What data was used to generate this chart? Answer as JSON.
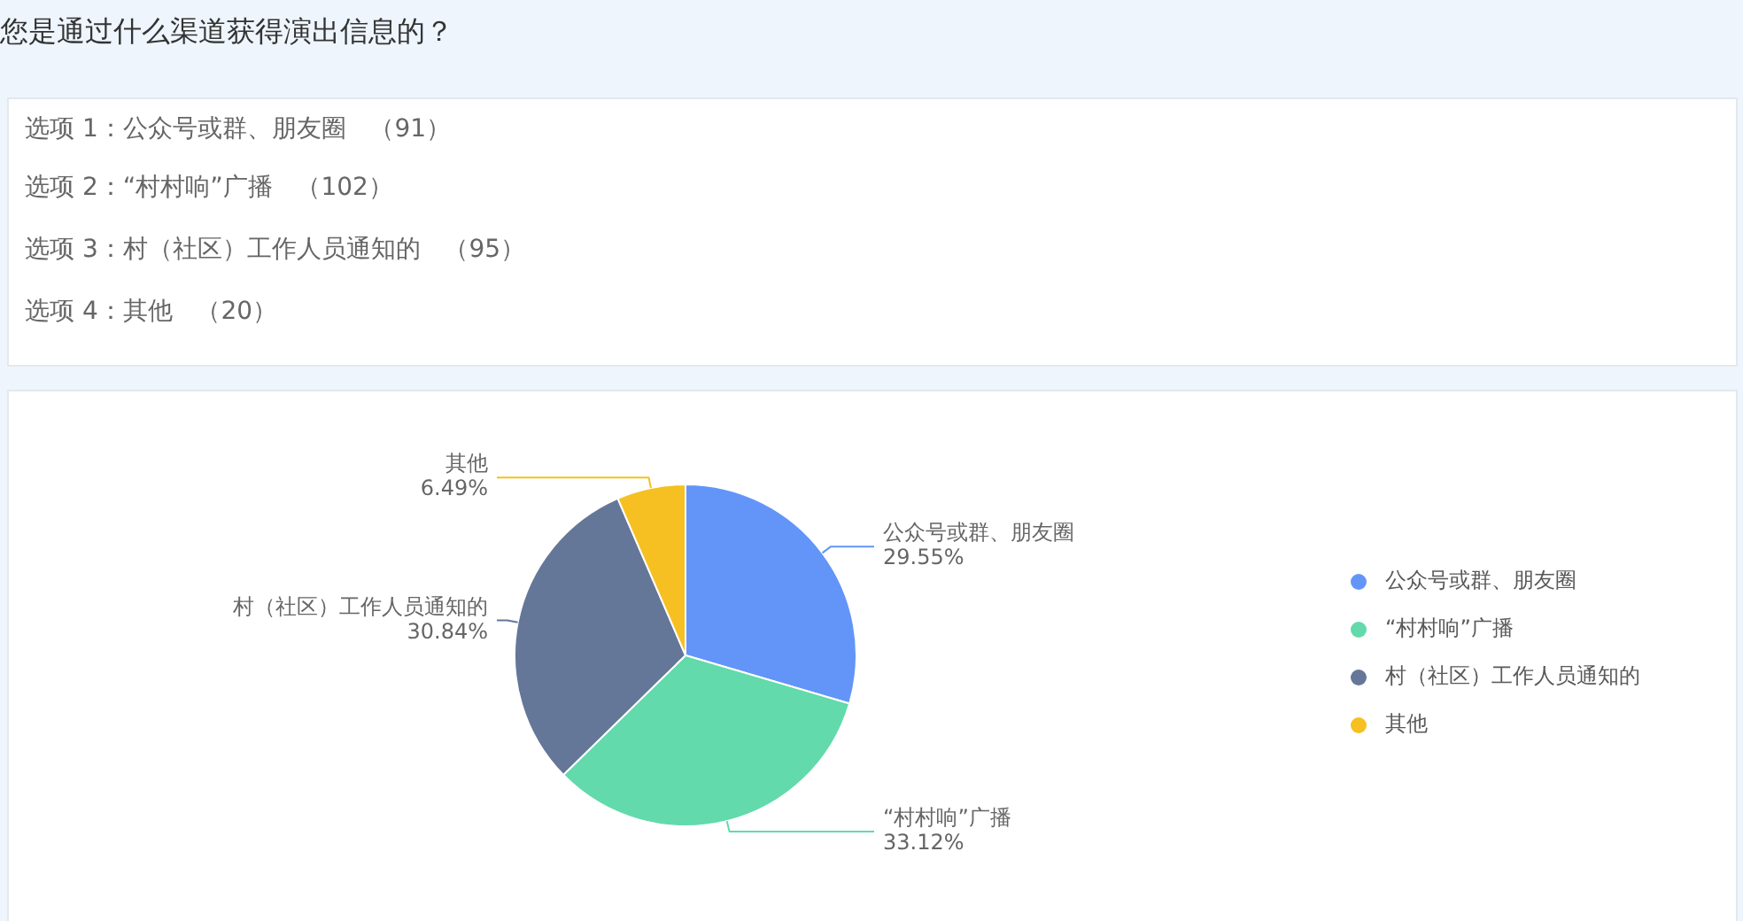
{
  "chart_data": {
    "type": "pie",
    "title": "您是通过什么渠道获得演出信息的？",
    "categories": [
      "公众号或群、朋友圈",
      "“村村响”广播",
      "村（社区）工作人员通知的",
      "其他"
    ],
    "values": [
      29.55,
      33.12,
      30.84,
      6.49
    ],
    "value_labels": [
      "29.55%",
      "33.12%",
      "30.84%",
      "6.49%"
    ],
    "colors": [
      "#6395f9",
      "#62daab",
      "#657798",
      "#f6c022"
    ],
    "legend": "right",
    "annotations": [
      "选项 1：公众号或群、朋友圈   （91）",
      "选项 2：“村村响”广播   （102）",
      "选项 3：村（社区）工作人员通知的   （95）",
      "选项 4：其他   （20）"
    ]
  }
}
